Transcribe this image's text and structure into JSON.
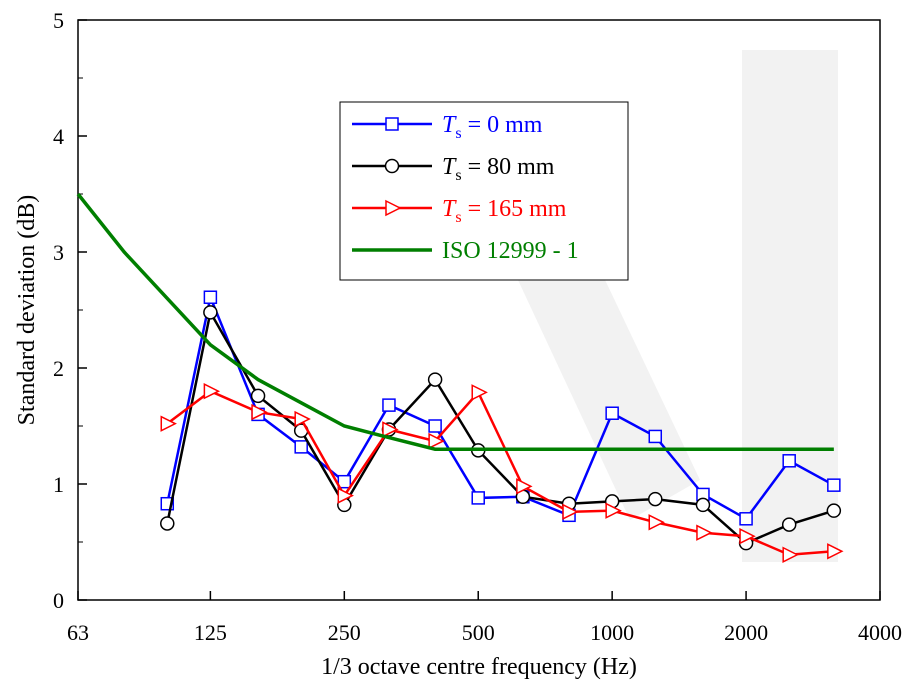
{
  "chart_data": {
    "type": "line",
    "xlabel": "1/3 octave centre frequency (Hz)",
    "ylabel": "Standard deviation (dB)",
    "x_scale": "log",
    "xlim": [
      63,
      4000
    ],
    "ylim": [
      0,
      5
    ],
    "x_ticks": [
      63,
      125,
      250,
      500,
      1000,
      2000,
      4000
    ],
    "y_ticks": [
      0,
      1,
      2,
      3,
      4,
      5
    ],
    "grid": false,
    "legend_position": "top-center",
    "series": [
      {
        "name_italic": "T",
        "name_sub": "s",
        "name_rest": " = 0 mm",
        "color": "#0000ff",
        "marker": "square",
        "x": [
          100,
          125,
          160,
          200,
          250,
          315,
          400,
          500,
          630,
          800,
          1000,
          1250,
          1600,
          2000,
          2500,
          3150
        ],
        "y": [
          0.83,
          2.61,
          1.6,
          1.32,
          1.02,
          1.68,
          1.5,
          0.88,
          0.89,
          0.73,
          1.61,
          1.41,
          0.91,
          0.7,
          1.2,
          0.99
        ]
      },
      {
        "name_italic": "T",
        "name_sub": "s",
        "name_rest": " = 80 mm",
        "color": "#000000",
        "marker": "circle",
        "x": [
          100,
          125,
          160,
          200,
          250,
          315,
          400,
          500,
          630,
          800,
          1000,
          1250,
          1600,
          2000,
          2500,
          3150
        ],
        "y": [
          0.66,
          2.48,
          1.76,
          1.46,
          0.82,
          1.47,
          1.9,
          1.29,
          0.89,
          0.83,
          0.85,
          0.87,
          0.82,
          0.49,
          0.65,
          0.77
        ]
      },
      {
        "name_italic": "T",
        "name_sub": "s",
        "name_rest": " = 165 mm",
        "color": "#ff0000",
        "marker": "triangle-right",
        "x": [
          100,
          125,
          160,
          200,
          250,
          315,
          400,
          500,
          630,
          800,
          1000,
          1250,
          1600,
          2000,
          2500,
          3150
        ],
        "y": [
          1.52,
          1.8,
          1.62,
          1.56,
          0.9,
          1.47,
          1.37,
          1.79,
          0.98,
          0.76,
          0.77,
          0.67,
          0.58,
          0.55,
          0.39,
          0.42
        ]
      },
      {
        "name_italic": "",
        "name_sub": "",
        "name_rest": "ISO 12999 - 1",
        "color": "#007f00",
        "marker": "none",
        "x": [
          63,
          80,
          100,
          125,
          160,
          200,
          250,
          315,
          400,
          500,
          630,
          800,
          1000,
          1250,
          1600,
          2000,
          2500,
          3150
        ],
        "y": [
          3.5,
          3.0,
          2.6,
          2.2,
          1.9,
          1.7,
          1.5,
          1.4,
          1.3,
          1.3,
          1.3,
          1.3,
          1.3,
          1.3,
          1.3,
          1.3,
          1.3,
          1.3
        ]
      }
    ]
  }
}
